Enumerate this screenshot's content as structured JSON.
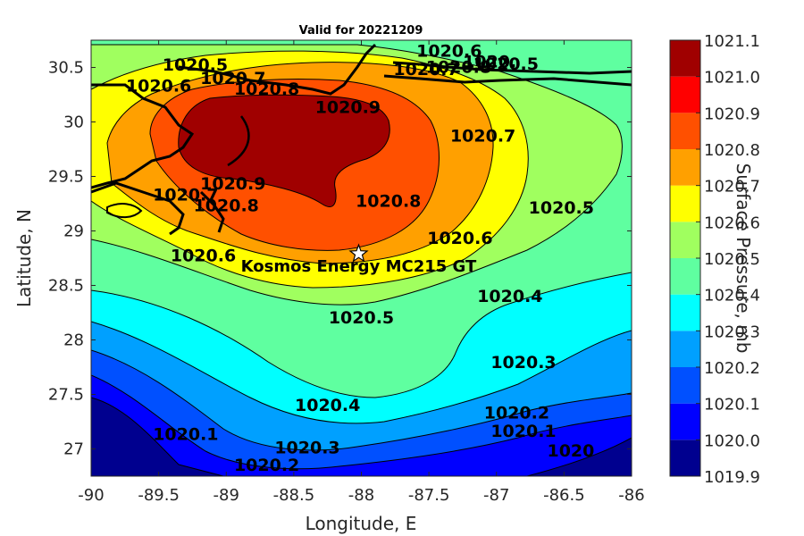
{
  "chart_data": {
    "type": "contour",
    "title": "Valid for 20221209",
    "xlabel": "Longitude, E",
    "ylabel": "Latitude, N",
    "xlim": [
      -90,
      -86
    ],
    "ylim": [
      26.75,
      30.75
    ],
    "xticks": [
      -90,
      -89.5,
      -89,
      -88.5,
      -88,
      -87.5,
      -87,
      -86.5,
      -86
    ],
    "xtick_labels": [
      "-90",
      "-89.5",
      "-89",
      "-88.5",
      "-88",
      "-87.5",
      "-87",
      "-86.5",
      "-86"
    ],
    "yticks": [
      27,
      27.5,
      28,
      28.5,
      29,
      29.5,
      30,
      30.5
    ],
    "ytick_labels": [
      "27",
      "27.5",
      "28",
      "28.5",
      "29",
      "29.5",
      "30",
      "30.5"
    ],
    "colorbar": {
      "label": "Surface Pressure, mb",
      "levels": [
        1019.9,
        1020.0,
        1020.1,
        1020.2,
        1020.3,
        1020.4,
        1020.5,
        1020.6,
        1020.7,
        1020.8,
        1020.9,
        1021.0,
        1021.1
      ],
      "tick_labels": [
        "1019.9",
        "1020.0",
        "1020.1",
        "1020.2",
        "1020.3",
        "1020.4",
        "1020.5",
        "1020.6",
        "1020.7",
        "1020.8",
        "1020.9",
        "1021.0",
        "1021.1"
      ],
      "colors": [
        "#00008f",
        "#0000ff",
        "#0050ff",
        "#00a0ff",
        "#00ffff",
        "#5fffa0",
        "#a0ff5f",
        "#ffff00",
        "#ffa000",
        "#ff5000",
        "#ff0000",
        "#a00000"
      ]
    },
    "contour_labels": [
      {
        "text": "1020.5",
        "lon": -89.23,
        "lat": 30.47
      },
      {
        "text": "1020.6",
        "lon": -89.5,
        "lat": 30.28
      },
      {
        "text": "1020.7",
        "lon": -88.95,
        "lat": 30.35
      },
      {
        "text": "1020.8",
        "lon": -88.7,
        "lat": 30.25
      },
      {
        "text": "1020.9",
        "lon": -88.1,
        "lat": 30.08
      },
      {
        "text": "1020.7",
        "lon": -87.1,
        "lat": 29.82
      },
      {
        "text": "1020.8",
        "lon": -87.8,
        "lat": 29.22
      },
      {
        "text": "1020.9",
        "lon": -88.95,
        "lat": 29.38
      },
      {
        "text": "1020.8",
        "lon": -89.0,
        "lat": 29.18
      },
      {
        "text": "1020.7",
        "lon": -89.3,
        "lat": 29.28
      },
      {
        "text": "1020.6",
        "lon": -87.27,
        "lat": 28.88
      },
      {
        "text": "1020.5",
        "lon": -86.52,
        "lat": 29.16
      },
      {
        "text": "1020.6",
        "lon": -89.17,
        "lat": 28.72
      },
      {
        "text": "1020.5",
        "lon": -88.0,
        "lat": 28.15
      },
      {
        "text": "1020.4",
        "lon": -86.9,
        "lat": 28.35
      },
      {
        "text": "1020.3",
        "lon": -86.8,
        "lat": 27.74
      },
      {
        "text": "1020.4",
        "lon": -88.25,
        "lat": 27.35
      },
      {
        "text": "1020.2",
        "lon": -86.85,
        "lat": 27.28
      },
      {
        "text": "1020.3",
        "lon": -88.4,
        "lat": 26.96
      },
      {
        "text": "1020.1",
        "lon": -89.3,
        "lat": 27.08
      },
      {
        "text": "1020.2",
        "lon": -88.7,
        "lat": 26.8
      },
      {
        "text": "1020.1",
        "lon": -86.8,
        "lat": 27.11
      },
      {
        "text": "1020",
        "lon": -86.45,
        "lat": 26.93
      },
      {
        "text": "1020.7",
        "lon": -87.52,
        "lat": 30.43
      },
      {
        "text": "1020.6",
        "lon": -87.35,
        "lat": 30.6
      },
      {
        "text": "1020.5",
        "lon": -86.93,
        "lat": 30.48
      },
      {
        "text": "1020.",
        "lon": -87.05,
        "lat": 30.5
      },
      {
        "text": "1020.8",
        "lon": -87.28,
        "lat": 30.45
      }
    ],
    "annotations": [
      {
        "text": "Kosmos Energy MC215 GT",
        "lon": -88.02,
        "lat": 28.79,
        "marker": "star"
      }
    ]
  }
}
